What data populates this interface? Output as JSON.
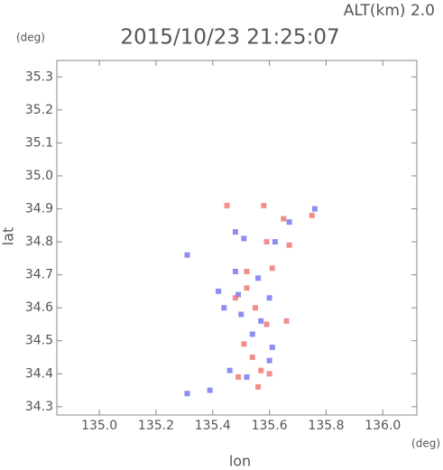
{
  "chart_data": {
    "type": "scatter",
    "title": "2015/10/23 21:25:07",
    "subtitle": "ALT(km) 2.0",
    "y_unit": "(deg)",
    "x_unit": "(deg)",
    "xlabel": "lon",
    "ylabel": "lat",
    "xlim": [
      134.85,
      136.12
    ],
    "ylim": [
      34.275,
      35.35
    ],
    "xticks": [
      {
        "value": 135,
        "label": "135.0"
      },
      135.2,
      135.4,
      135.6,
      135.8,
      {
        "value": 136,
        "label": "136.0"
      }
    ],
    "yticks": [
      34.3,
      34.4,
      34.5,
      34.6,
      34.7,
      34.8,
      34.9,
      {
        "value": 35,
        "label": "35.0"
      },
      35.1,
      35.2,
      35.3
    ],
    "grid": false,
    "series": [
      {
        "color": "#7070f0",
        "x": [
          135.31,
          135.31,
          135.39,
          135.48,
          135.51,
          135.42,
          135.48,
          135.56,
          135.6,
          135.5,
          135.54,
          135.61,
          135.46,
          135.52,
          135.6,
          135.67,
          135.62,
          135.49,
          135.57,
          135.44,
          135.76
        ],
        "values": [
          34.76,
          34.34,
          34.35,
          34.83,
          34.81,
          34.65,
          34.71,
          34.69,
          34.63,
          34.58,
          34.52,
          34.48,
          34.41,
          34.39,
          34.44,
          34.86,
          34.8,
          34.64,
          34.56,
          34.6,
          34.9
        ]
      },
      {
        "color": "#f07070",
        "x": [
          135.45,
          135.58,
          135.65,
          135.75,
          135.59,
          135.67,
          135.61,
          135.52,
          135.48,
          135.55,
          135.51,
          135.59,
          135.54,
          135.57,
          135.49,
          135.6,
          135.56,
          135.52,
          135.66
        ],
        "values": [
          34.91,
          34.91,
          34.87,
          34.88,
          34.8,
          34.79,
          34.72,
          34.66,
          34.63,
          34.6,
          34.49,
          34.55,
          34.45,
          34.41,
          34.39,
          34.4,
          34.36,
          34.71,
          34.56
        ]
      }
    ]
  }
}
